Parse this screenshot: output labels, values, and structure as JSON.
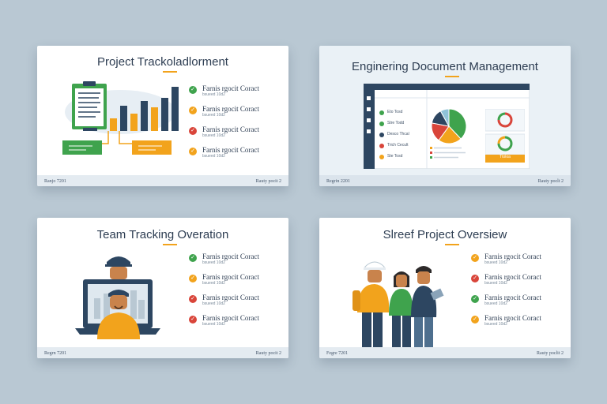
{
  "colors": {
    "background": "#b9c8d3",
    "navy": "#2d4661",
    "orange": "#f2a31c",
    "green": "#3fa34d",
    "red": "#d9453a",
    "accent_rule": "#f2a31c"
  },
  "slides": [
    {
      "title": "Project Trackoladlorment",
      "footer_left": "Ranjo 7201",
      "footer_right": "Rauty pocit 2",
      "legend": [
        {
          "label": "Farnis rgocit Coract",
          "sub": "bsueed  10d2",
          "color": "green",
          "icon": "check-icon"
        },
        {
          "label": "Farnis rgocit Coract",
          "sub": "bsueed  10d2",
          "color": "orange",
          "icon": "check-icon"
        },
        {
          "label": "Farnis rgocit Coract",
          "sub": "bsueed  10d2",
          "color": "red",
          "icon": "check-icon"
        },
        {
          "label": "Farnis rgocit Coract",
          "sub": "bsueed  10d2",
          "color": "orange",
          "icon": "check-icon"
        }
      ]
    },
    {
      "title": "Enginering Document Management",
      "footer_left": "Regrin 2201",
      "footer_right": "Rauty poclt 2",
      "app_list": [
        {
          "label": "Eto Tosd",
          "color": "green"
        },
        {
          "label": "Stre Todd",
          "color": "green"
        },
        {
          "label": "Desco Thcal",
          "color": "navy"
        },
        {
          "label": "Trich Cecult",
          "color": "red"
        },
        {
          "label": "Ste Tosd",
          "color": "orange"
        }
      ],
      "pie_values": [
        38,
        22,
        18,
        14,
        8
      ],
      "panel_label": "Ttoloa"
    },
    {
      "title": "Team Tracking Overation",
      "footer_left": "Regrn 7201",
      "footer_right": "Rauty pocit 2",
      "legend": [
        {
          "label": "Farnis rgocit Coract",
          "sub": "bsueed  10d2",
          "color": "green",
          "icon": "check-icon"
        },
        {
          "label": "Farnis rgocit Coract",
          "sub": "bsueed  10d2",
          "color": "orange",
          "icon": "check-icon"
        },
        {
          "label": "Farnis rgocit Coract",
          "sub": "bsueed  10d2",
          "color": "red",
          "icon": "check-icon"
        },
        {
          "label": "Farnis rgocit Coract",
          "sub": "bsueed  10d2",
          "color": "red",
          "icon": "check-icon"
        }
      ]
    },
    {
      "title": "Slreef Project Oversiew",
      "footer_left": "Fegre 7201",
      "footer_right": "Rauty poclit 2",
      "legend": [
        {
          "label": "Farnis rgocit Coract",
          "sub": "bsueed  10d2",
          "color": "orange",
          "icon": "check-icon"
        },
        {
          "label": "Farnis rgocit Coract",
          "sub": "bsueed  10d2",
          "color": "red",
          "icon": "check-icon"
        },
        {
          "label": "Farnis rgocit Coract",
          "sub": "bsueed  10d2",
          "color": "green",
          "icon": "check-icon"
        },
        {
          "label": "Farnis rgocit Coract",
          "sub": "bsueed  10d2",
          "color": "orange",
          "icon": "check-icon"
        }
      ]
    }
  ]
}
